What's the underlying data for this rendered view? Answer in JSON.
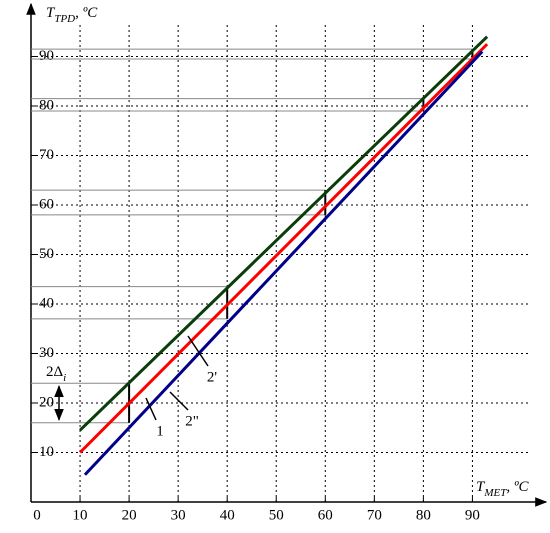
{
  "chart_data": {
    "type": "line",
    "y_label": {
      "main": "T",
      "sub": "TPD",
      "unit": ", ºC"
    },
    "x_label": {
      "main": "T",
      "sub": "MET",
      "unit": ", ºC"
    },
    "xlim": [
      0,
      105
    ],
    "ylim": [
      0,
      100
    ],
    "xticks": [
      0,
      10,
      20,
      30,
      40,
      50,
      60,
      70,
      80,
      90
    ],
    "yticks": [
      10,
      20,
      30,
      40,
      50,
      60,
      70,
      80,
      90
    ],
    "grid": true,
    "series": [
      {
        "name": "2'",
        "color": "#0a3d0a",
        "x": [
          10,
          93
        ],
        "values": [
          14.5,
          94
        ]
      },
      {
        "name": "1",
        "color": "#ff0000",
        "x": [
          10,
          93
        ],
        "values": [
          10,
          92.5
        ]
      },
      {
        "name": "2\"",
        "color": "#00008b",
        "x": [
          11,
          92
        ],
        "values": [
          5.5,
          91
        ]
      }
    ],
    "ranges": [
      {
        "x": 20,
        "low": 16,
        "high": 24
      },
      {
        "x": 40,
        "low": 37,
        "high": 43.5
      },
      {
        "x": 60,
        "low": 58,
        "high": 63
      },
      {
        "x": 80,
        "low": 79,
        "high": 81.5
      },
      {
        "x": 90,
        "low": 89.5,
        "high": 91.5
      }
    ],
    "delta_label": {
      "main": "2Δ",
      "sub": "i"
    }
  }
}
